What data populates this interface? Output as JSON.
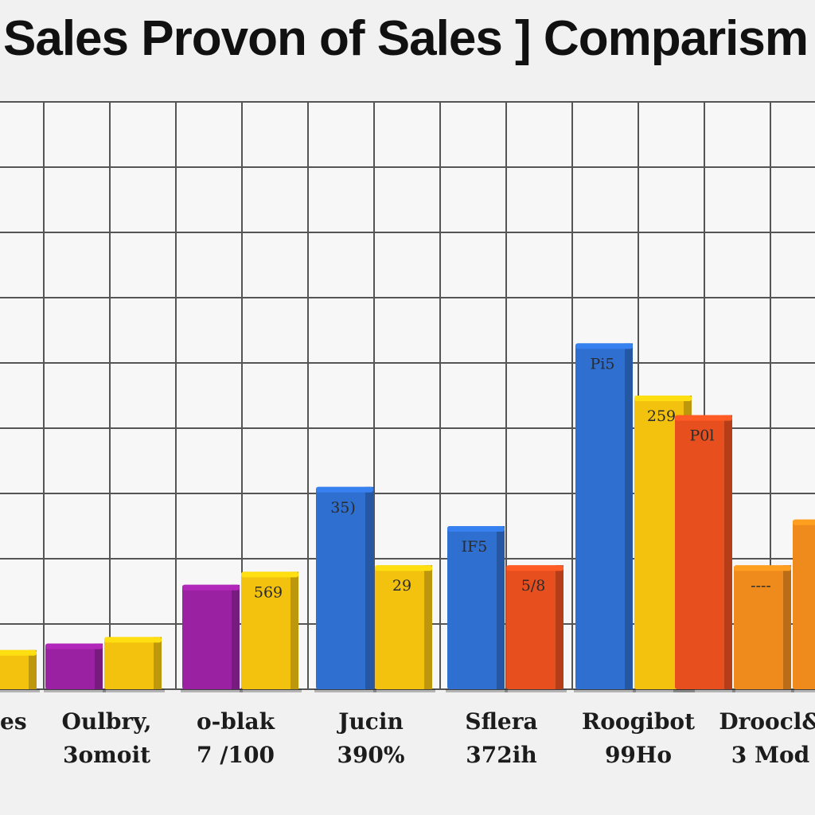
{
  "chart_data": {
    "type": "bar",
    "title": "Sales Provon of Sales ] Comparism",
    "grid": true,
    "legend": "none",
    "ylim": [
      0,
      9
    ],
    "categories": [
      {
        "label_top": "es",
        "label_bottom": ""
      },
      {
        "label_top": "Oulbry,",
        "label_bottom": "3omoit"
      },
      {
        "label_top": "o-blak",
        "label_bottom": "7 /100"
      },
      {
        "label_top": "Jucin",
        "label_bottom": "390%"
      },
      {
        "label_top": "Sflera",
        "label_bottom": "372ih"
      },
      {
        "label_top": "Roogibot",
        "label_bottom": "99Ho"
      },
      {
        "label_top": "Droocl&",
        "label_bottom": "3 Mod"
      }
    ],
    "bars": [
      {
        "group": 0,
        "value": 0.6,
        "color": "#f2c20f",
        "label": ""
      },
      {
        "group": 1,
        "value": 0.7,
        "color": "#9a22a2",
        "label": ""
      },
      {
        "group": 1,
        "value": 0.8,
        "color": "#f2c20f",
        "label": ""
      },
      {
        "group": 2,
        "value": 1.6,
        "color": "#9a22a2",
        "label": ""
      },
      {
        "group": 2,
        "value": 1.8,
        "color": "#f2c20f",
        "label": "569"
      },
      {
        "group": 3,
        "value": 3.1,
        "color": "#2f6fd0",
        "label": "35)"
      },
      {
        "group": 3,
        "value": 1.9,
        "color": "#f2c20f",
        "label": "29"
      },
      {
        "group": 4,
        "value": 2.5,
        "color": "#2f6fd0",
        "label": "IF5"
      },
      {
        "group": 4,
        "value": 1.9,
        "color": "#e84f1f",
        "label": "5/8"
      },
      {
        "group": 5,
        "value": 5.3,
        "color": "#2f6fd0",
        "label": "Pi5"
      },
      {
        "group": 5,
        "value": 4.5,
        "color": "#f2c20f",
        "label": "259"
      },
      {
        "group": 6,
        "value": 4.2,
        "color": "#e84f1f",
        "label": "P0l"
      },
      {
        "group": 6,
        "value": 1.9,
        "color": "#ef8a1c",
        "label": "----"
      },
      {
        "group": 6,
        "value": 2.6,
        "color": "#ef8a1c",
        "label": ""
      }
    ]
  }
}
